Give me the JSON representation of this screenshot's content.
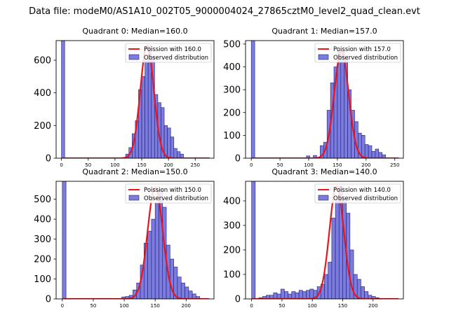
{
  "figure": {
    "suptitle": "Data file: modeM0/AS1A10_002T05_9000004024_27865cztM0_level2_quad_clean.evt"
  },
  "colors": {
    "bar_fill": "#7b7be0",
    "bar_edge": "#1f1f6b",
    "poisson_line": "#e8141e",
    "axis": "#000000"
  },
  "chart_data": [
    {
      "type": "bar",
      "panel": "q0",
      "title": "Quadrant 0: Median=160.0",
      "legend": [
        "Poission with 160.0",
        "Observed distribution"
      ],
      "xlim": [
        -10,
        285
      ],
      "ylim": [
        0,
        720
      ],
      "xticks": [
        0,
        50,
        100,
        150,
        200,
        250
      ],
      "yticks": [
        0,
        200,
        400,
        600
      ],
      "bin_width": 6,
      "bins": [
        {
          "x": 0,
          "y": 720
        },
        {
          "x": 120,
          "y": 25
        },
        {
          "x": 126,
          "y": 65
        },
        {
          "x": 132,
          "y": 150
        },
        {
          "x": 138,
          "y": 230
        },
        {
          "x": 144,
          "y": 420
        },
        {
          "x": 150,
          "y": 500
        },
        {
          "x": 156,
          "y": 600
        },
        {
          "x": 162,
          "y": 690
        },
        {
          "x": 168,
          "y": 620
        },
        {
          "x": 174,
          "y": 390
        },
        {
          "x": 180,
          "y": 340
        },
        {
          "x": 186,
          "y": 310
        },
        {
          "x": 192,
          "y": 200
        },
        {
          "x": 198,
          "y": 185
        },
        {
          "x": 204,
          "y": 130
        },
        {
          "x": 210,
          "y": 60
        },
        {
          "x": 216,
          "y": 40
        },
        {
          "x": 222,
          "y": 25
        }
      ],
      "poisson_peak": 690
    },
    {
      "type": "bar",
      "panel": "q1",
      "title": "Quadrant 1: Median=157.0",
      "legend": [
        "Poission with 157.0",
        "Observed distribution"
      ],
      "xlim": [
        -10,
        265
      ],
      "ylim": [
        0,
        515
      ],
      "xticks": [
        0,
        50,
        100,
        150,
        200,
        250
      ],
      "yticks": [
        0,
        100,
        200,
        300,
        400,
        500
      ],
      "bin_width": 6,
      "bins": [
        {
          "x": 0,
          "y": 515
        },
        {
          "x": 96,
          "y": 10
        },
        {
          "x": 108,
          "y": 12
        },
        {
          "x": 120,
          "y": 55
        },
        {
          "x": 126,
          "y": 70
        },
        {
          "x": 132,
          "y": 210
        },
        {
          "x": 138,
          "y": 330
        },
        {
          "x": 144,
          "y": 400
        },
        {
          "x": 150,
          "y": 470
        },
        {
          "x": 156,
          "y": 470
        },
        {
          "x": 162,
          "y": 440
        },
        {
          "x": 168,
          "y": 300
        },
        {
          "x": 174,
          "y": 210
        },
        {
          "x": 180,
          "y": 160
        },
        {
          "x": 186,
          "y": 110
        },
        {
          "x": 192,
          "y": 100
        },
        {
          "x": 198,
          "y": 60
        },
        {
          "x": 204,
          "y": 55
        },
        {
          "x": 210,
          "y": 30
        },
        {
          "x": 216,
          "y": 40
        },
        {
          "x": 222,
          "y": 25
        },
        {
          "x": 228,
          "y": 15
        }
      ],
      "poisson_peak": 470
    },
    {
      "type": "bar",
      "panel": "q2",
      "title": "Quadrant 2: Median=150.0",
      "legend": [
        "Poission with 150.0",
        "Observed distribution"
      ],
      "xlim": [
        -10,
        245
      ],
      "ylim": [
        0,
        590
      ],
      "xticks": [
        0,
        50,
        100,
        150,
        200
      ],
      "yticks": [
        0,
        100,
        200,
        300,
        400,
        500
      ],
      "bin_width": 6,
      "bins": [
        {
          "x": 0,
          "y": 590
        },
        {
          "x": 96,
          "y": 10
        },
        {
          "x": 102,
          "y": 12
        },
        {
          "x": 108,
          "y": 18
        },
        {
          "x": 114,
          "y": 45
        },
        {
          "x": 120,
          "y": 80
        },
        {
          "x": 126,
          "y": 170
        },
        {
          "x": 132,
          "y": 280
        },
        {
          "x": 138,
          "y": 340
        },
        {
          "x": 144,
          "y": 400
        },
        {
          "x": 150,
          "y": 480
        },
        {
          "x": 156,
          "y": 550
        },
        {
          "x": 162,
          "y": 460
        },
        {
          "x": 168,
          "y": 270
        },
        {
          "x": 174,
          "y": 200
        },
        {
          "x": 180,
          "y": 160
        },
        {
          "x": 186,
          "y": 110
        },
        {
          "x": 192,
          "y": 80
        },
        {
          "x": 198,
          "y": 60
        },
        {
          "x": 204,
          "y": 40
        },
        {
          "x": 210,
          "y": 25
        },
        {
          "x": 216,
          "y": 12
        }
      ],
      "poisson_peak": 560
    },
    {
      "type": "bar",
      "panel": "q3",
      "title": "Quadrant 3: Median=140.0",
      "legend": [
        "Poission with 140.0",
        "Observed distribution"
      ],
      "xlim": [
        -10,
        250
      ],
      "ylim": [
        0,
        480
      ],
      "xticks": [
        0,
        50,
        100,
        150,
        200
      ],
      "yticks": [
        0,
        100,
        200,
        300,
        400
      ],
      "bin_width": 6,
      "bins": [
        {
          "x": 0,
          "y": 480
        },
        {
          "x": 12,
          "y": 5
        },
        {
          "x": 18,
          "y": 10
        },
        {
          "x": 24,
          "y": 15
        },
        {
          "x": 30,
          "y": 15
        },
        {
          "x": 36,
          "y": 25
        },
        {
          "x": 42,
          "y": 20
        },
        {
          "x": 48,
          "y": 40
        },
        {
          "x": 54,
          "y": 30
        },
        {
          "x": 60,
          "y": 20
        },
        {
          "x": 66,
          "y": 30
        },
        {
          "x": 72,
          "y": 25
        },
        {
          "x": 78,
          "y": 35
        },
        {
          "x": 84,
          "y": 30
        },
        {
          "x": 90,
          "y": 35
        },
        {
          "x": 96,
          "y": 40
        },
        {
          "x": 102,
          "y": 35
        },
        {
          "x": 108,
          "y": 50
        },
        {
          "x": 114,
          "y": 60
        },
        {
          "x": 120,
          "y": 100
        },
        {
          "x": 126,
          "y": 150
        },
        {
          "x": 132,
          "y": 330
        },
        {
          "x": 138,
          "y": 400
        },
        {
          "x": 144,
          "y": 460
        },
        {
          "x": 150,
          "y": 400
        },
        {
          "x": 156,
          "y": 350
        },
        {
          "x": 162,
          "y": 200
        },
        {
          "x": 168,
          "y": 100
        },
        {
          "x": 174,
          "y": 80
        },
        {
          "x": 180,
          "y": 50
        },
        {
          "x": 186,
          "y": 30
        },
        {
          "x": 192,
          "y": 15
        },
        {
          "x": 198,
          "y": 10
        },
        {
          "x": 204,
          "y": 5
        }
      ],
      "poisson_peak": 460
    }
  ]
}
